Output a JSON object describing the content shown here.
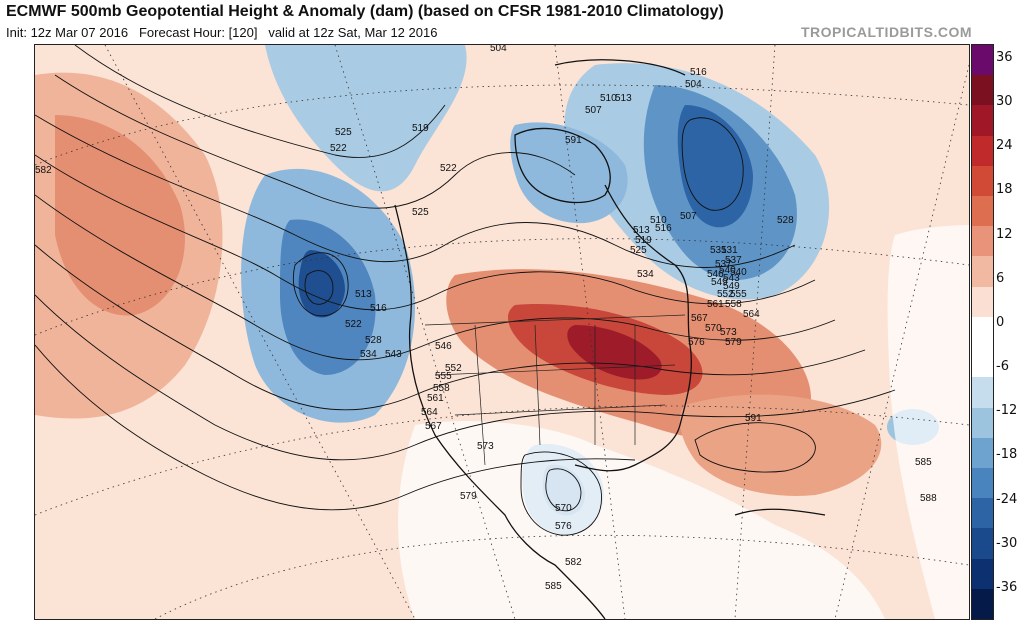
{
  "header": {
    "title": "ECMWF 500mb Geopotential Height & Anomaly (dam) (based on CFSR 1981-2010 Climatology)",
    "init": "Init: 12z Mar 07 2016",
    "forecast_hour": "Forecast Hour: [120]",
    "valid": "valid at 12z Sat, Mar 12 2016",
    "credit": "TROPICALTIDBITS.COM"
  },
  "colorbar": {
    "labels": [
      "36",
      "30",
      "24",
      "18",
      "12",
      "6",
      "0",
      "-6",
      "-12",
      "-18",
      "-24",
      "-30",
      "-36"
    ],
    "colors": [
      "#6a0a6a",
      "#7a1020",
      "#a01828",
      "#c02a2a",
      "#d04a36",
      "#de6e50",
      "#e8937a",
      "#f2b9a2",
      "#fadfd2",
      "#ffffff",
      "#ffffff",
      "#c6dded",
      "#9cc4df",
      "#6fa3cf",
      "#4a84bf",
      "#2d64a6",
      "#1a4a8c",
      "#0d3170",
      "#061a4a"
    ]
  },
  "contour_labels": [
    "504",
    "516",
    "504",
    "510",
    "513",
    "507",
    "525",
    "519",
    "522",
    "582",
    "522",
    "525",
    "591",
    "510",
    "513",
    "516",
    "507",
    "519",
    "525",
    "528",
    "531",
    "537",
    "540",
    "543",
    "549",
    "534",
    "552",
    "555",
    "558",
    "561",
    "567",
    "564",
    "570",
    "573",
    "579",
    "576",
    "513",
    "516",
    "522",
    "528",
    "534",
    "543",
    "546",
    "552",
    "555",
    "558",
    "561",
    "564",
    "567",
    "573",
    "579",
    "570",
    "576",
    "582",
    "585",
    "591",
    "585",
    "588",
    "537",
    "540",
    "546",
    "549",
    "531"
  ]
}
